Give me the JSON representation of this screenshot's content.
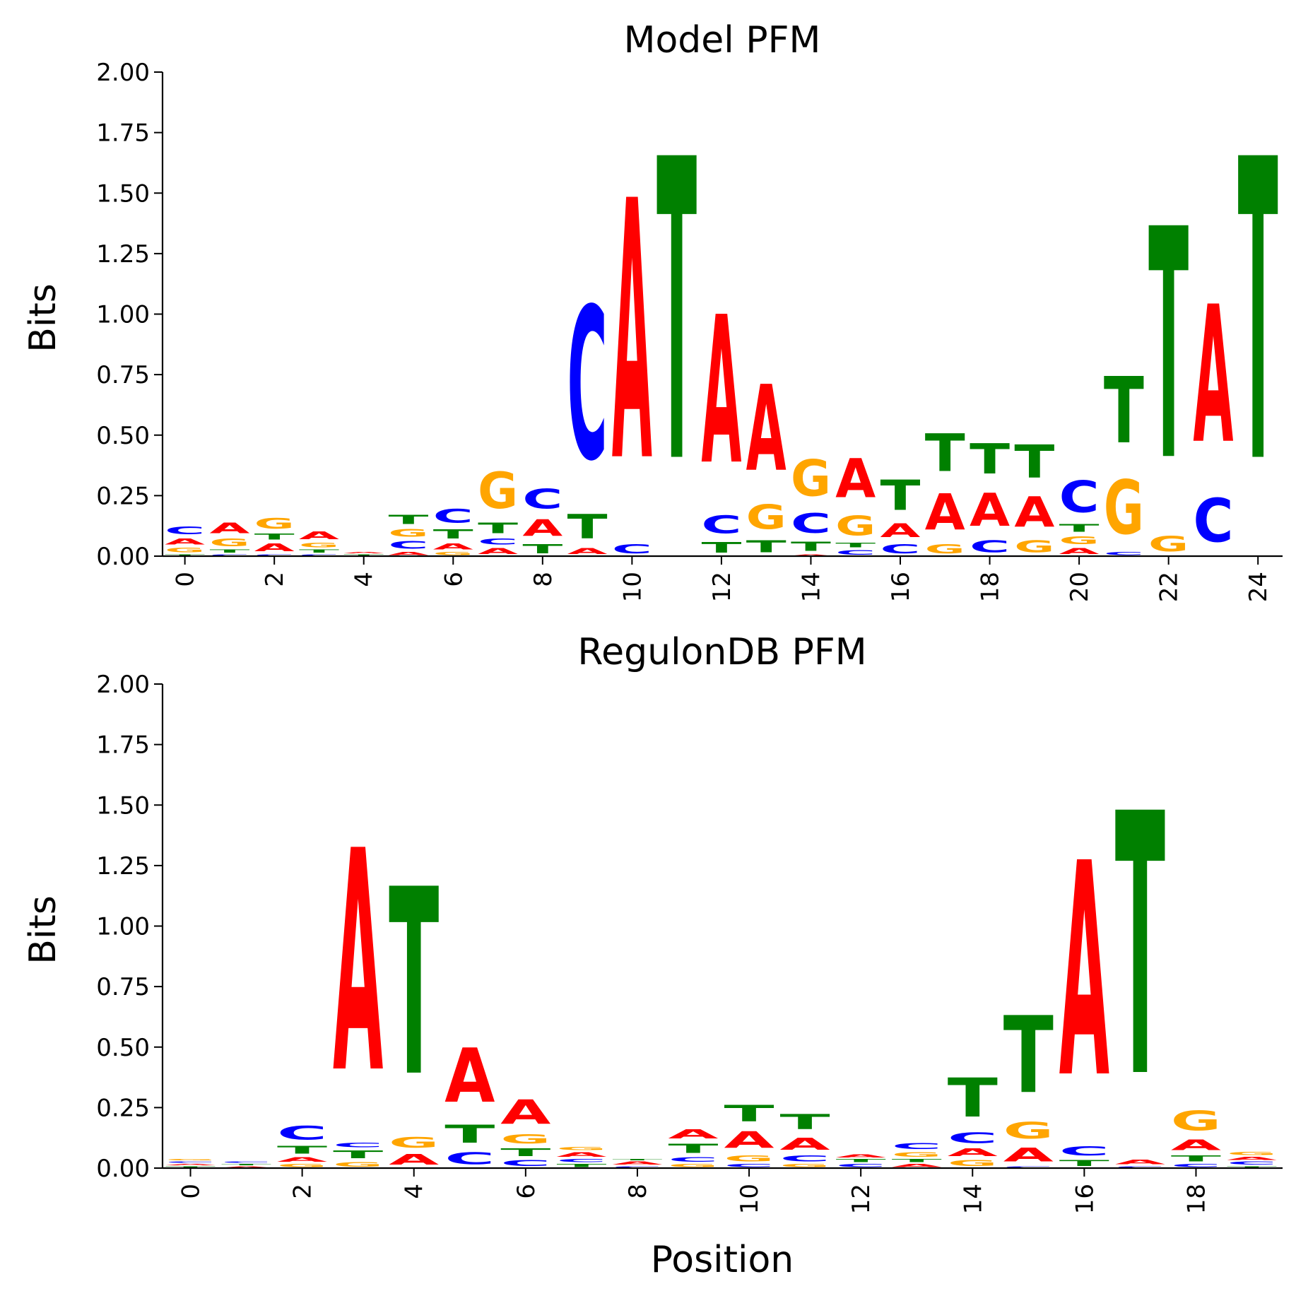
{
  "colors": {
    "A": "#ff0000",
    "C": "#0000ff",
    "G": "#ffa500",
    "T": "#008000"
  },
  "chart_data": [
    {
      "type": "sequence-logo",
      "title": "Model PFM",
      "xlabel": "",
      "ylabel": "Bits",
      "ylim": [
        0,
        2
      ],
      "yticks": [
        "0.00",
        "0.25",
        "0.50",
        "0.75",
        "1.00",
        "1.25",
        "1.50",
        "1.75",
        "2.00"
      ],
      "xticks": [
        "0",
        "2",
        "4",
        "6",
        "8",
        "10",
        "12",
        "14",
        "16",
        "18",
        "20",
        "22",
        "24"
      ],
      "positions": [
        [
          [
            "T",
            0.01
          ],
          [
            "G",
            0.03
          ],
          [
            "A",
            0.04
          ],
          [
            "C",
            0.05
          ]
        ],
        [
          [
            "C",
            0.01
          ],
          [
            "T",
            0.02
          ],
          [
            "G",
            0.05
          ],
          [
            "A",
            0.07
          ]
        ],
        [
          [
            "C",
            0.01
          ],
          [
            "A",
            0.05
          ],
          [
            "T",
            0.04
          ],
          [
            "G",
            0.07
          ]
        ],
        [
          [
            "C",
            0.01
          ],
          [
            "T",
            0.02
          ],
          [
            "G",
            0.03
          ],
          [
            "A",
            0.05
          ]
        ],
        [
          [
            "T",
            0.01
          ],
          [
            "A",
            0.01
          ]
        ],
        [
          [
            "A",
            0.02
          ],
          [
            "C",
            0.05
          ],
          [
            "G",
            0.05
          ],
          [
            "T",
            0.06
          ]
        ],
        [
          [
            "G",
            0.02
          ],
          [
            "A",
            0.04
          ],
          [
            "T",
            0.06
          ],
          [
            "C",
            0.09
          ]
        ],
        [
          [
            "A",
            0.04
          ],
          [
            "C",
            0.04
          ],
          [
            "T",
            0.07
          ],
          [
            "G",
            0.24
          ]
        ],
        [
          [
            "T",
            0.06
          ],
          [
            "A",
            0.11
          ],
          [
            "C",
            0.13
          ]
        ],
        [
          [
            "A",
            0.04
          ],
          [
            "T",
            0.16
          ],
          [
            "C",
            1.01
          ]
        ],
        [
          [
            "C",
            0.06
          ],
          [
            "A",
            1.72
          ]
        ],
        [
          [
            "T",
            2.0
          ]
        ],
        [
          [
            "T",
            0.07
          ],
          [
            "C",
            0.12
          ],
          [
            "A",
            0.98
          ]
        ],
        [
          [
            "T",
            0.08
          ],
          [
            "G",
            0.16
          ],
          [
            "A",
            0.57
          ]
        ],
        [
          [
            "A",
            0.01
          ],
          [
            "T",
            0.06
          ],
          [
            "C",
            0.13
          ],
          [
            "G",
            0.24
          ]
        ],
        [
          [
            "C",
            0.03
          ],
          [
            "T",
            0.03
          ],
          [
            "G",
            0.13
          ],
          [
            "A",
            0.26
          ]
        ],
        [
          [
            "C",
            0.06
          ],
          [
            "A",
            0.09
          ],
          [
            "T",
            0.2
          ]
        ],
        [
          [
            "G",
            0.06
          ],
          [
            "A",
            0.24
          ],
          [
            "T",
            0.25
          ]
        ],
        [
          [
            "C",
            0.08
          ],
          [
            "A",
            0.22
          ],
          [
            "T",
            0.2
          ]
        ],
        [
          [
            "G",
            0.08
          ],
          [
            "A",
            0.2
          ],
          [
            "T",
            0.22
          ]
        ],
        [
          [
            "A",
            0.04
          ],
          [
            "G",
            0.05
          ],
          [
            "T",
            0.05
          ],
          [
            "C",
            0.21
          ]
        ],
        [
          [
            "C",
            0.02
          ],
          [
            "G",
            0.36
          ],
          [
            "T",
            0.44
          ]
        ],
        [
          [
            "G",
            0.1
          ],
          [
            "T",
            1.53
          ]
        ],
        [
          [
            "C",
            0.29
          ],
          [
            "A",
            0.91
          ]
        ],
        [
          [
            "T",
            2.0
          ]
        ]
      ]
    },
    {
      "type": "sequence-logo",
      "title": "RegulonDB PFM",
      "xlabel": "Position",
      "ylabel": "Bits",
      "ylim": [
        0,
        2
      ],
      "yticks": [
        "0.00",
        "0.25",
        "0.50",
        "0.75",
        "1.00",
        "1.25",
        "1.50",
        "1.75",
        "2.00"
      ],
      "xticks": [
        "0",
        "2",
        "4",
        "6",
        "8",
        "10",
        "12",
        "14",
        "16",
        "18"
      ],
      "positions": [
        [
          [
            "T",
            0.01
          ],
          [
            "A",
            0.01
          ],
          [
            "C",
            0.01
          ],
          [
            "G",
            0.01
          ]
        ],
        [
          [
            "A",
            0.01
          ],
          [
            "T",
            0.01
          ],
          [
            "C",
            0.01
          ]
        ],
        [
          [
            "G",
            0.02
          ],
          [
            "A",
            0.03
          ],
          [
            "T",
            0.05
          ],
          [
            "C",
            0.09
          ]
        ],
        [
          [
            "G",
            0.03
          ],
          [
            "T",
            0.05
          ],
          [
            "C",
            0.03
          ],
          [
            "A",
            1.47
          ]
        ],
        [
          [
            "A",
            0.07
          ],
          [
            "G",
            0.07
          ],
          [
            "T",
            1.24
          ]
        ],
        [
          [
            "C",
            0.08
          ],
          [
            "T",
            0.12
          ],
          [
            "A",
            0.36
          ]
        ],
        [
          [
            "C",
            0.04
          ],
          [
            "T",
            0.05
          ],
          [
            "G",
            0.06
          ],
          [
            "A",
            0.16
          ]
        ],
        [
          [
            "T",
            0.02
          ],
          [
            "C",
            0.02
          ],
          [
            "A",
            0.03
          ],
          [
            "G",
            0.02
          ]
        ],
        [
          [
            "C",
            0.01
          ],
          [
            "A",
            0.02
          ],
          [
            "T",
            0.01
          ]
        ],
        [
          [
            "G",
            0.02
          ],
          [
            "C",
            0.03
          ],
          [
            "T",
            0.06
          ],
          [
            "A",
            0.06
          ]
        ],
        [
          [
            "C",
            0.02
          ],
          [
            "G",
            0.04
          ],
          [
            "A",
            0.11
          ],
          [
            "T",
            0.11
          ]
        ],
        [
          [
            "G",
            0.02
          ],
          [
            "C",
            0.04
          ],
          [
            "A",
            0.08
          ],
          [
            "T",
            0.1
          ]
        ],
        [
          [
            "C",
            0.02
          ],
          [
            "T",
            0.02
          ],
          [
            "A",
            0.02
          ]
        ],
        [
          [
            "A",
            0.02
          ],
          [
            "T",
            0.02
          ],
          [
            "G",
            0.03
          ],
          [
            "C",
            0.04
          ]
        ],
        [
          [
            "G",
            0.04
          ],
          [
            "A",
            0.05
          ],
          [
            "C",
            0.07
          ],
          [
            "T",
            0.26
          ]
        ],
        [
          [
            "C",
            0.01
          ],
          [
            "A",
            0.09
          ],
          [
            "G",
            0.11
          ],
          [
            "T",
            0.51
          ]
        ],
        [
          [
            "T",
            0.04
          ],
          [
            "C",
            0.06
          ],
          [
            "A",
            1.42
          ]
        ],
        [
          [
            "C",
            0.01
          ],
          [
            "A",
            0.03
          ],
          [
            "T",
            1.74
          ]
        ],
        [
          [
            "C",
            0.02
          ],
          [
            "T",
            0.04
          ],
          [
            "A",
            0.07
          ],
          [
            "G",
            0.13
          ]
        ],
        [
          [
            "T",
            0.01
          ],
          [
            "C",
            0.02
          ],
          [
            "A",
            0.02
          ],
          [
            "G",
            0.02
          ]
        ]
      ]
    }
  ]
}
